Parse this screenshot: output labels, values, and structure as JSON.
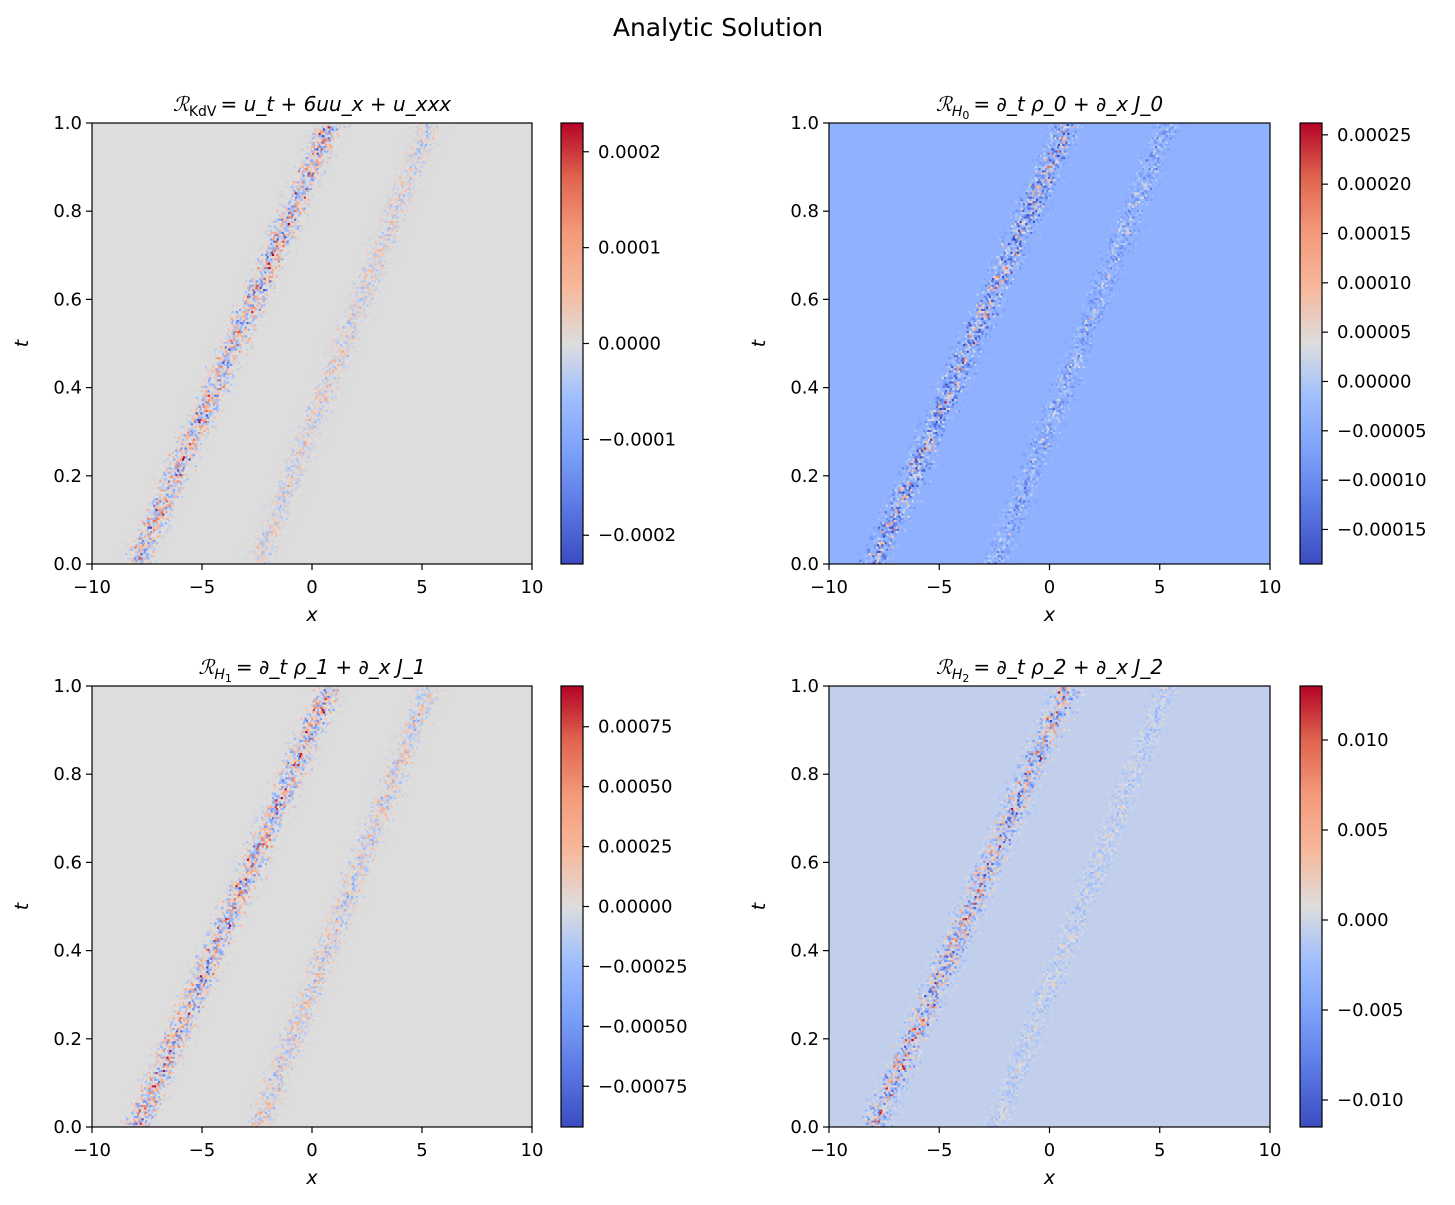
{
  "figure": {
    "suptitle": "Analytic Solution"
  },
  "chart_data": [
    {
      "type": "heatmap",
      "title": "𝓡_KdV = u_t + 6uu_x + u_xxx",
      "title_parts": {
        "script": "ℛ",
        "sub": "KdV",
        "rhs": "= u_t + 6uu_x + u_xxx"
      },
      "xlabel": "x",
      "ylabel": "t",
      "xlim": [
        -10,
        10
      ],
      "ylim": [
        0,
        1
      ],
      "x_ticks": [
        -10,
        -5,
        0,
        5,
        10
      ],
      "y_ticks": [
        0.0,
        0.2,
        0.4,
        0.6,
        0.8,
        1.0
      ],
      "colorbar": {
        "colormap": "coolwarm",
        "range": [
          -0.00023,
          0.00023
        ],
        "ticks": [
          -0.0002,
          -0.0001,
          0.0,
          0.0001,
          0.0002
        ]
      },
      "background_value": 0.0,
      "features": [
        {
          "x_at_t0": -8.0,
          "x_at_t1": 0.8,
          "amplitude": 0.00023
        },
        {
          "x_at_t0": -2.5,
          "x_at_t1": 5.3,
          "amplitude": 8e-05
        }
      ]
    },
    {
      "type": "heatmap",
      "title": "𝓡_H0 = ∂_t ρ_0 + ∂_x J_0",
      "title_parts": {
        "script": "ℛ",
        "sub": "H",
        "subsub": "0",
        "rhs": "= ∂_t ρ_0 + ∂_x J_0"
      },
      "xlabel": "x",
      "ylabel": "t",
      "xlim": [
        -10,
        10
      ],
      "ylim": [
        0,
        1
      ],
      "x_ticks": [
        -10,
        -5,
        0,
        5,
        10
      ],
      "y_ticks": [
        0.0,
        0.2,
        0.4,
        0.6,
        0.8,
        1.0
      ],
      "colorbar": {
        "colormap": "coolwarm",
        "range": [
          -0.000185,
          0.000262
        ],
        "ticks": [
          -0.00015,
          -0.0001,
          -5e-05,
          0.0,
          5e-05,
          0.0001,
          0.00015,
          0.0002,
          0.00025
        ]
      },
      "background_value": -4e-05,
      "features": [
        {
          "x_at_t0": -8.0,
          "x_at_t1": 0.8,
          "amplitude": 0.00022
        },
        {
          "x_at_t0": -2.5,
          "x_at_t1": 5.3,
          "amplitude": 0.0001
        }
      ]
    },
    {
      "type": "heatmap",
      "title": "𝓡_H1 = ∂_t ρ_1 + ∂_x J_1",
      "title_parts": {
        "script": "ℛ",
        "sub": "H",
        "subsub": "1",
        "rhs": "= ∂_t ρ_1 + ∂_x J_1"
      },
      "xlabel": "x",
      "ylabel": "t",
      "xlim": [
        -10,
        10
      ],
      "ylim": [
        0,
        1
      ],
      "x_ticks": [
        -10,
        -5,
        0,
        5,
        10
      ],
      "y_ticks": [
        0.0,
        0.2,
        0.4,
        0.6,
        0.8,
        1.0
      ],
      "colorbar": {
        "colormap": "coolwarm",
        "range": [
          -0.00092,
          0.00092
        ],
        "ticks": [
          -0.00075,
          -0.0005,
          -0.00025,
          0.0,
          0.00025,
          0.0005,
          0.00075
        ]
      },
      "background_value": 0.0,
      "features": [
        {
          "x_at_t0": -8.0,
          "x_at_t1": 0.8,
          "amplitude": 0.0009
        },
        {
          "x_at_t0": -2.5,
          "x_at_t1": 5.3,
          "amplitude": 0.0004
        }
      ]
    },
    {
      "type": "heatmap",
      "title": "𝓡_H2 = ∂_t ρ_2 + ∂_x J_2",
      "title_parts": {
        "script": "ℛ",
        "sub": "H",
        "subsub": "2",
        "rhs": "= ∂_t ρ_2 + ∂_x J_2"
      },
      "xlabel": "x",
      "ylabel": "t",
      "xlim": [
        -10,
        10
      ],
      "ylim": [
        0,
        1
      ],
      "x_ticks": [
        -10,
        -5,
        0,
        5,
        10
      ],
      "y_ticks": [
        0.0,
        0.2,
        0.4,
        0.6,
        0.8,
        1.0
      ],
      "colorbar": {
        "colormap": "coolwarm",
        "range": [
          -0.0115,
          0.013
        ],
        "ticks": [
          -0.01,
          -0.005,
          0.0,
          0.005,
          0.01
        ]
      },
      "background_value": -0.0006,
      "features": [
        {
          "x_at_t0": -8.0,
          "x_at_t1": 0.8,
          "amplitude": 0.012
        },
        {
          "x_at_t0": -2.5,
          "x_at_t1": 5.3,
          "amplitude": 0.003
        }
      ]
    }
  ]
}
